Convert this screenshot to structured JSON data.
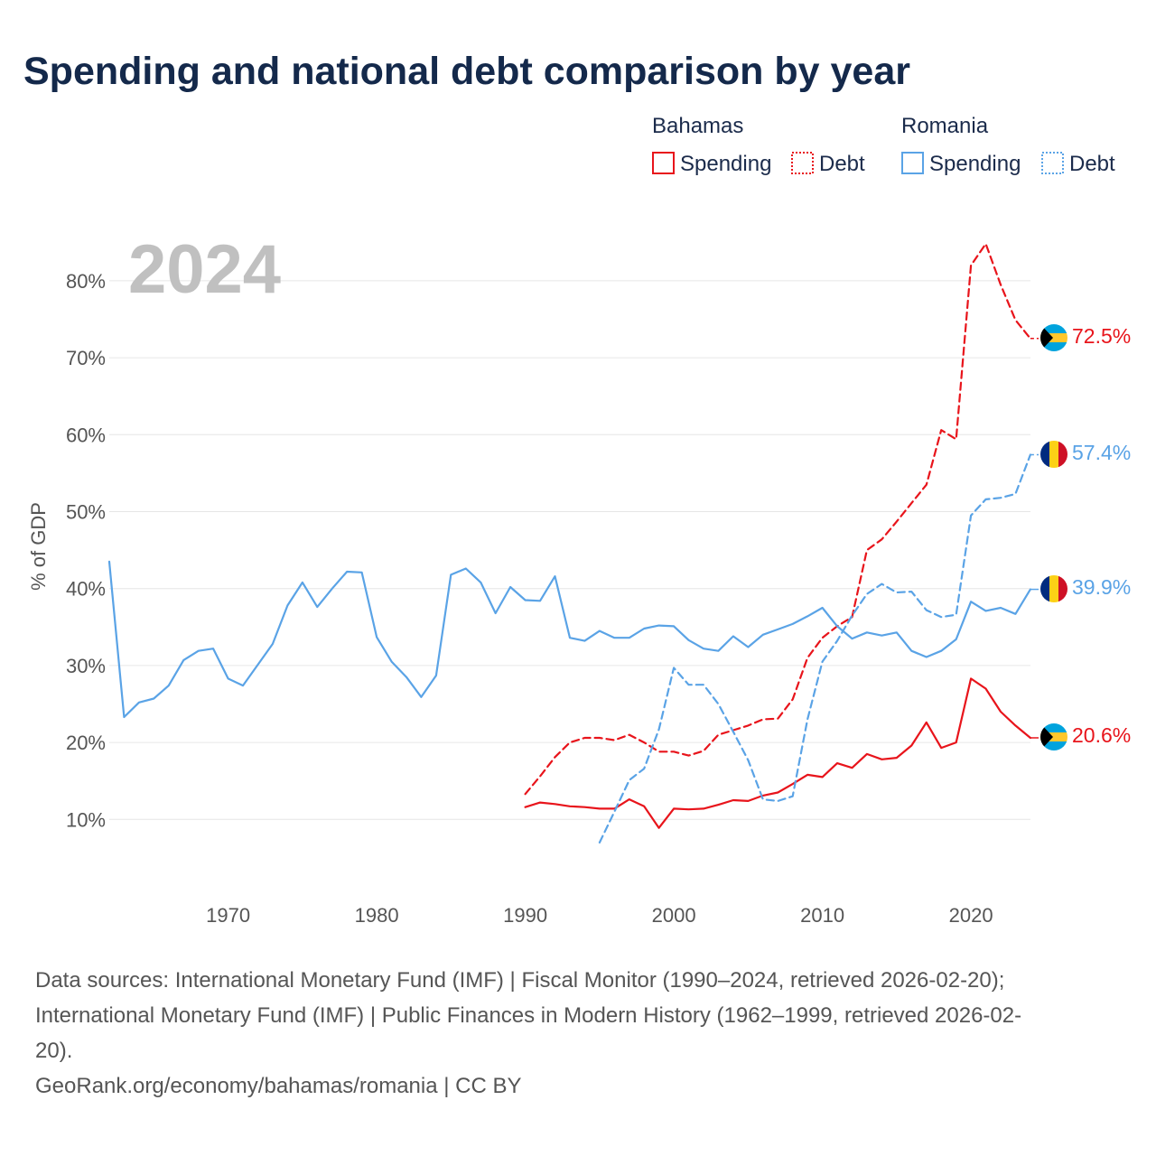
{
  "title": "Spending and national debt comparison by year",
  "legend": {
    "groups": [
      {
        "name": "Bahamas",
        "color": "#e8141b",
        "items": [
          {
            "label": "Spending",
            "style": "solid"
          },
          {
            "label": "Debt",
            "style": "dotted"
          }
        ]
      },
      {
        "name": "Romania",
        "color": "#5aa3e6",
        "items": [
          {
            "label": "Spending",
            "style": "solid"
          },
          {
            "label": "Debt",
            "style": "dotted"
          }
        ]
      }
    ]
  },
  "year_watermark": "2024",
  "chart_data": {
    "type": "line",
    "title": "Spending and national debt comparison by year",
    "xlabel": "",
    "ylabel": "% of GDP",
    "xlim": [
      1962,
      2024
    ],
    "ylim": [
      2.5,
      90
    ],
    "x_ticks": [
      1970,
      1980,
      1990,
      2000,
      2010,
      2020
    ],
    "x_tick_labels": [
      "1970",
      "1980",
      "1990",
      "2000",
      "2010",
      "2020"
    ],
    "y_ticks": [
      10,
      20,
      30,
      40,
      50,
      60,
      70,
      80
    ],
    "y_tick_labels": [
      "10%",
      "20%",
      "30%",
      "40%",
      "50%",
      "60%",
      "70%",
      "80%"
    ],
    "grid": "horizontal",
    "series": [
      {
        "name": "Bahamas Spending",
        "country": "Bahamas",
        "measure": "Spending",
        "color": "#e8141b",
        "dash": "solid",
        "end_label": "20.6%",
        "points": [
          [
            1990,
            11.6
          ],
          [
            1991,
            12.2
          ],
          [
            1992,
            12.0
          ],
          [
            1993,
            11.7
          ],
          [
            1994,
            11.6
          ],
          [
            1995,
            11.4
          ],
          [
            1996,
            11.4
          ],
          [
            1997,
            12.6
          ],
          [
            1998,
            11.7
          ],
          [
            1999,
            8.9
          ],
          [
            2000,
            11.4
          ],
          [
            2001,
            11.3
          ],
          [
            2002,
            11.4
          ],
          [
            2003,
            11.9
          ],
          [
            2004,
            12.5
          ],
          [
            2005,
            12.4
          ],
          [
            2006,
            13.1
          ],
          [
            2007,
            13.5
          ],
          [
            2008,
            14.6
          ],
          [
            2009,
            15.8
          ],
          [
            2010,
            15.5
          ],
          [
            2011,
            17.3
          ],
          [
            2012,
            16.7
          ],
          [
            2013,
            18.5
          ],
          [
            2014,
            17.8
          ],
          [
            2015,
            18.0
          ],
          [
            2016,
            19.6
          ],
          [
            2017,
            22.6
          ],
          [
            2018,
            19.3
          ],
          [
            2019,
            20.0
          ],
          [
            2020,
            28.3
          ],
          [
            2021,
            27.0
          ],
          [
            2022,
            24.0
          ],
          [
            2023,
            22.2
          ],
          [
            2024,
            20.6
          ]
        ]
      },
      {
        "name": "Bahamas Debt",
        "country": "Bahamas",
        "measure": "Debt",
        "color": "#e8141b",
        "dash": "dashed",
        "end_label": "72.5%",
        "points": [
          [
            1990,
            13.3
          ],
          [
            1991,
            15.6
          ],
          [
            1992,
            18.1
          ],
          [
            1993,
            20.0
          ],
          [
            1994,
            20.6
          ],
          [
            1995,
            20.6
          ],
          [
            1996,
            20.3
          ],
          [
            1997,
            21.0
          ],
          [
            1998,
            20.0
          ],
          [
            1999,
            18.8
          ],
          [
            2000,
            18.8
          ],
          [
            2001,
            18.3
          ],
          [
            2002,
            18.9
          ],
          [
            2003,
            21.0
          ],
          [
            2004,
            21.6
          ],
          [
            2005,
            22.2
          ],
          [
            2006,
            23.0
          ],
          [
            2007,
            23.1
          ],
          [
            2008,
            25.6
          ],
          [
            2009,
            31.0
          ],
          [
            2010,
            33.6
          ],
          [
            2011,
            35.1
          ],
          [
            2012,
            36.3
          ],
          [
            2013,
            45.0
          ],
          [
            2014,
            46.4
          ],
          [
            2015,
            48.7
          ],
          [
            2016,
            51.1
          ],
          [
            2017,
            53.5
          ],
          [
            2018,
            60.6
          ],
          [
            2019,
            59.4
          ],
          [
            2020,
            82.0
          ],
          [
            2021,
            84.8
          ],
          [
            2022,
            79.5
          ],
          [
            2023,
            74.9
          ],
          [
            2024,
            72.5
          ]
        ]
      },
      {
        "name": "Romania Spending",
        "country": "Romania",
        "measure": "Spending",
        "color": "#5aa3e6",
        "dash": "solid",
        "end_label": "39.9%",
        "points": [
          [
            1962,
            43.5
          ],
          [
            1963,
            23.3
          ],
          [
            1964,
            25.2
          ],
          [
            1965,
            25.7
          ],
          [
            1966,
            27.4
          ],
          [
            1967,
            30.7
          ],
          [
            1968,
            31.9
          ],
          [
            1969,
            32.2
          ],
          [
            1970,
            28.3
          ],
          [
            1971,
            27.4
          ],
          [
            1972,
            30.1
          ],
          [
            1973,
            32.8
          ],
          [
            1974,
            37.8
          ],
          [
            1975,
            40.8
          ],
          [
            1976,
            37.6
          ],
          [
            1977,
            40.0
          ],
          [
            1978,
            42.2
          ],
          [
            1979,
            42.1
          ],
          [
            1980,
            33.7
          ],
          [
            1981,
            30.5
          ],
          [
            1982,
            28.5
          ],
          [
            1983,
            25.9
          ],
          [
            1984,
            28.7
          ],
          [
            1985,
            41.8
          ],
          [
            1986,
            42.6
          ],
          [
            1987,
            40.8
          ],
          [
            1988,
            36.8
          ],
          [
            1989,
            40.2
          ],
          [
            1990,
            38.5
          ],
          [
            1991,
            38.4
          ],
          [
            1992,
            41.6
          ],
          [
            1993,
            33.6
          ],
          [
            1994,
            33.2
          ],
          [
            1995,
            34.5
          ],
          [
            1996,
            33.6
          ],
          [
            1997,
            33.6
          ],
          [
            1998,
            34.8
          ],
          [
            1999,
            35.2
          ],
          [
            2000,
            35.1
          ],
          [
            2001,
            33.3
          ],
          [
            2002,
            32.2
          ],
          [
            2003,
            31.9
          ],
          [
            2004,
            33.8
          ],
          [
            2005,
            32.4
          ],
          [
            2006,
            34.0
          ],
          [
            2007,
            34.7
          ],
          [
            2008,
            35.4
          ],
          [
            2009,
            36.4
          ],
          [
            2010,
            37.5
          ],
          [
            2011,
            35.1
          ],
          [
            2012,
            33.5
          ],
          [
            2013,
            34.3
          ],
          [
            2014,
            33.9
          ],
          [
            2015,
            34.3
          ],
          [
            2016,
            31.9
          ],
          [
            2017,
            31.1
          ],
          [
            2018,
            31.9
          ],
          [
            2019,
            33.4
          ],
          [
            2020,
            38.3
          ],
          [
            2021,
            37.1
          ],
          [
            2022,
            37.5
          ],
          [
            2023,
            36.7
          ],
          [
            2024,
            39.9
          ]
        ]
      },
      {
        "name": "Romania Debt",
        "country": "Romania",
        "measure": "Debt",
        "color": "#5aa3e6",
        "dash": "dashed",
        "end_label": "57.4%",
        "points": [
          [
            1995,
            7.0
          ],
          [
            1996,
            11.0
          ],
          [
            1997,
            15.1
          ],
          [
            1998,
            16.6
          ],
          [
            1999,
            21.7
          ],
          [
            2000,
            29.7
          ],
          [
            2001,
            27.5
          ],
          [
            2002,
            27.5
          ],
          [
            2003,
            25.0
          ],
          [
            2004,
            21.4
          ],
          [
            2005,
            17.7
          ],
          [
            2006,
            12.6
          ],
          [
            2007,
            12.4
          ],
          [
            2008,
            13.0
          ],
          [
            2009,
            23.0
          ],
          [
            2010,
            30.5
          ],
          [
            2011,
            33.2
          ],
          [
            2012,
            36.5
          ],
          [
            2013,
            39.3
          ],
          [
            2014,
            40.6
          ],
          [
            2015,
            39.5
          ],
          [
            2016,
            39.6
          ],
          [
            2017,
            37.2
          ],
          [
            2018,
            36.3
          ],
          [
            2019,
            36.6
          ],
          [
            2020,
            49.5
          ],
          [
            2021,
            51.6
          ],
          [
            2022,
            51.8
          ],
          [
            2023,
            52.3
          ],
          [
            2024,
            57.4
          ]
        ]
      }
    ]
  },
  "sources": {
    "line1": "Data sources: International Monetary Fund (IMF) | Fiscal Monitor (1990–2024, retrieved 2026-02-20);",
    "line2": "International Monetary Fund (IMF) | Public Finances in Modern History (1962–1999, retrieved 2026-02-",
    "line3": "20).",
    "line4": "GeoRank.org/economy/bahamas/romania | CC BY"
  }
}
